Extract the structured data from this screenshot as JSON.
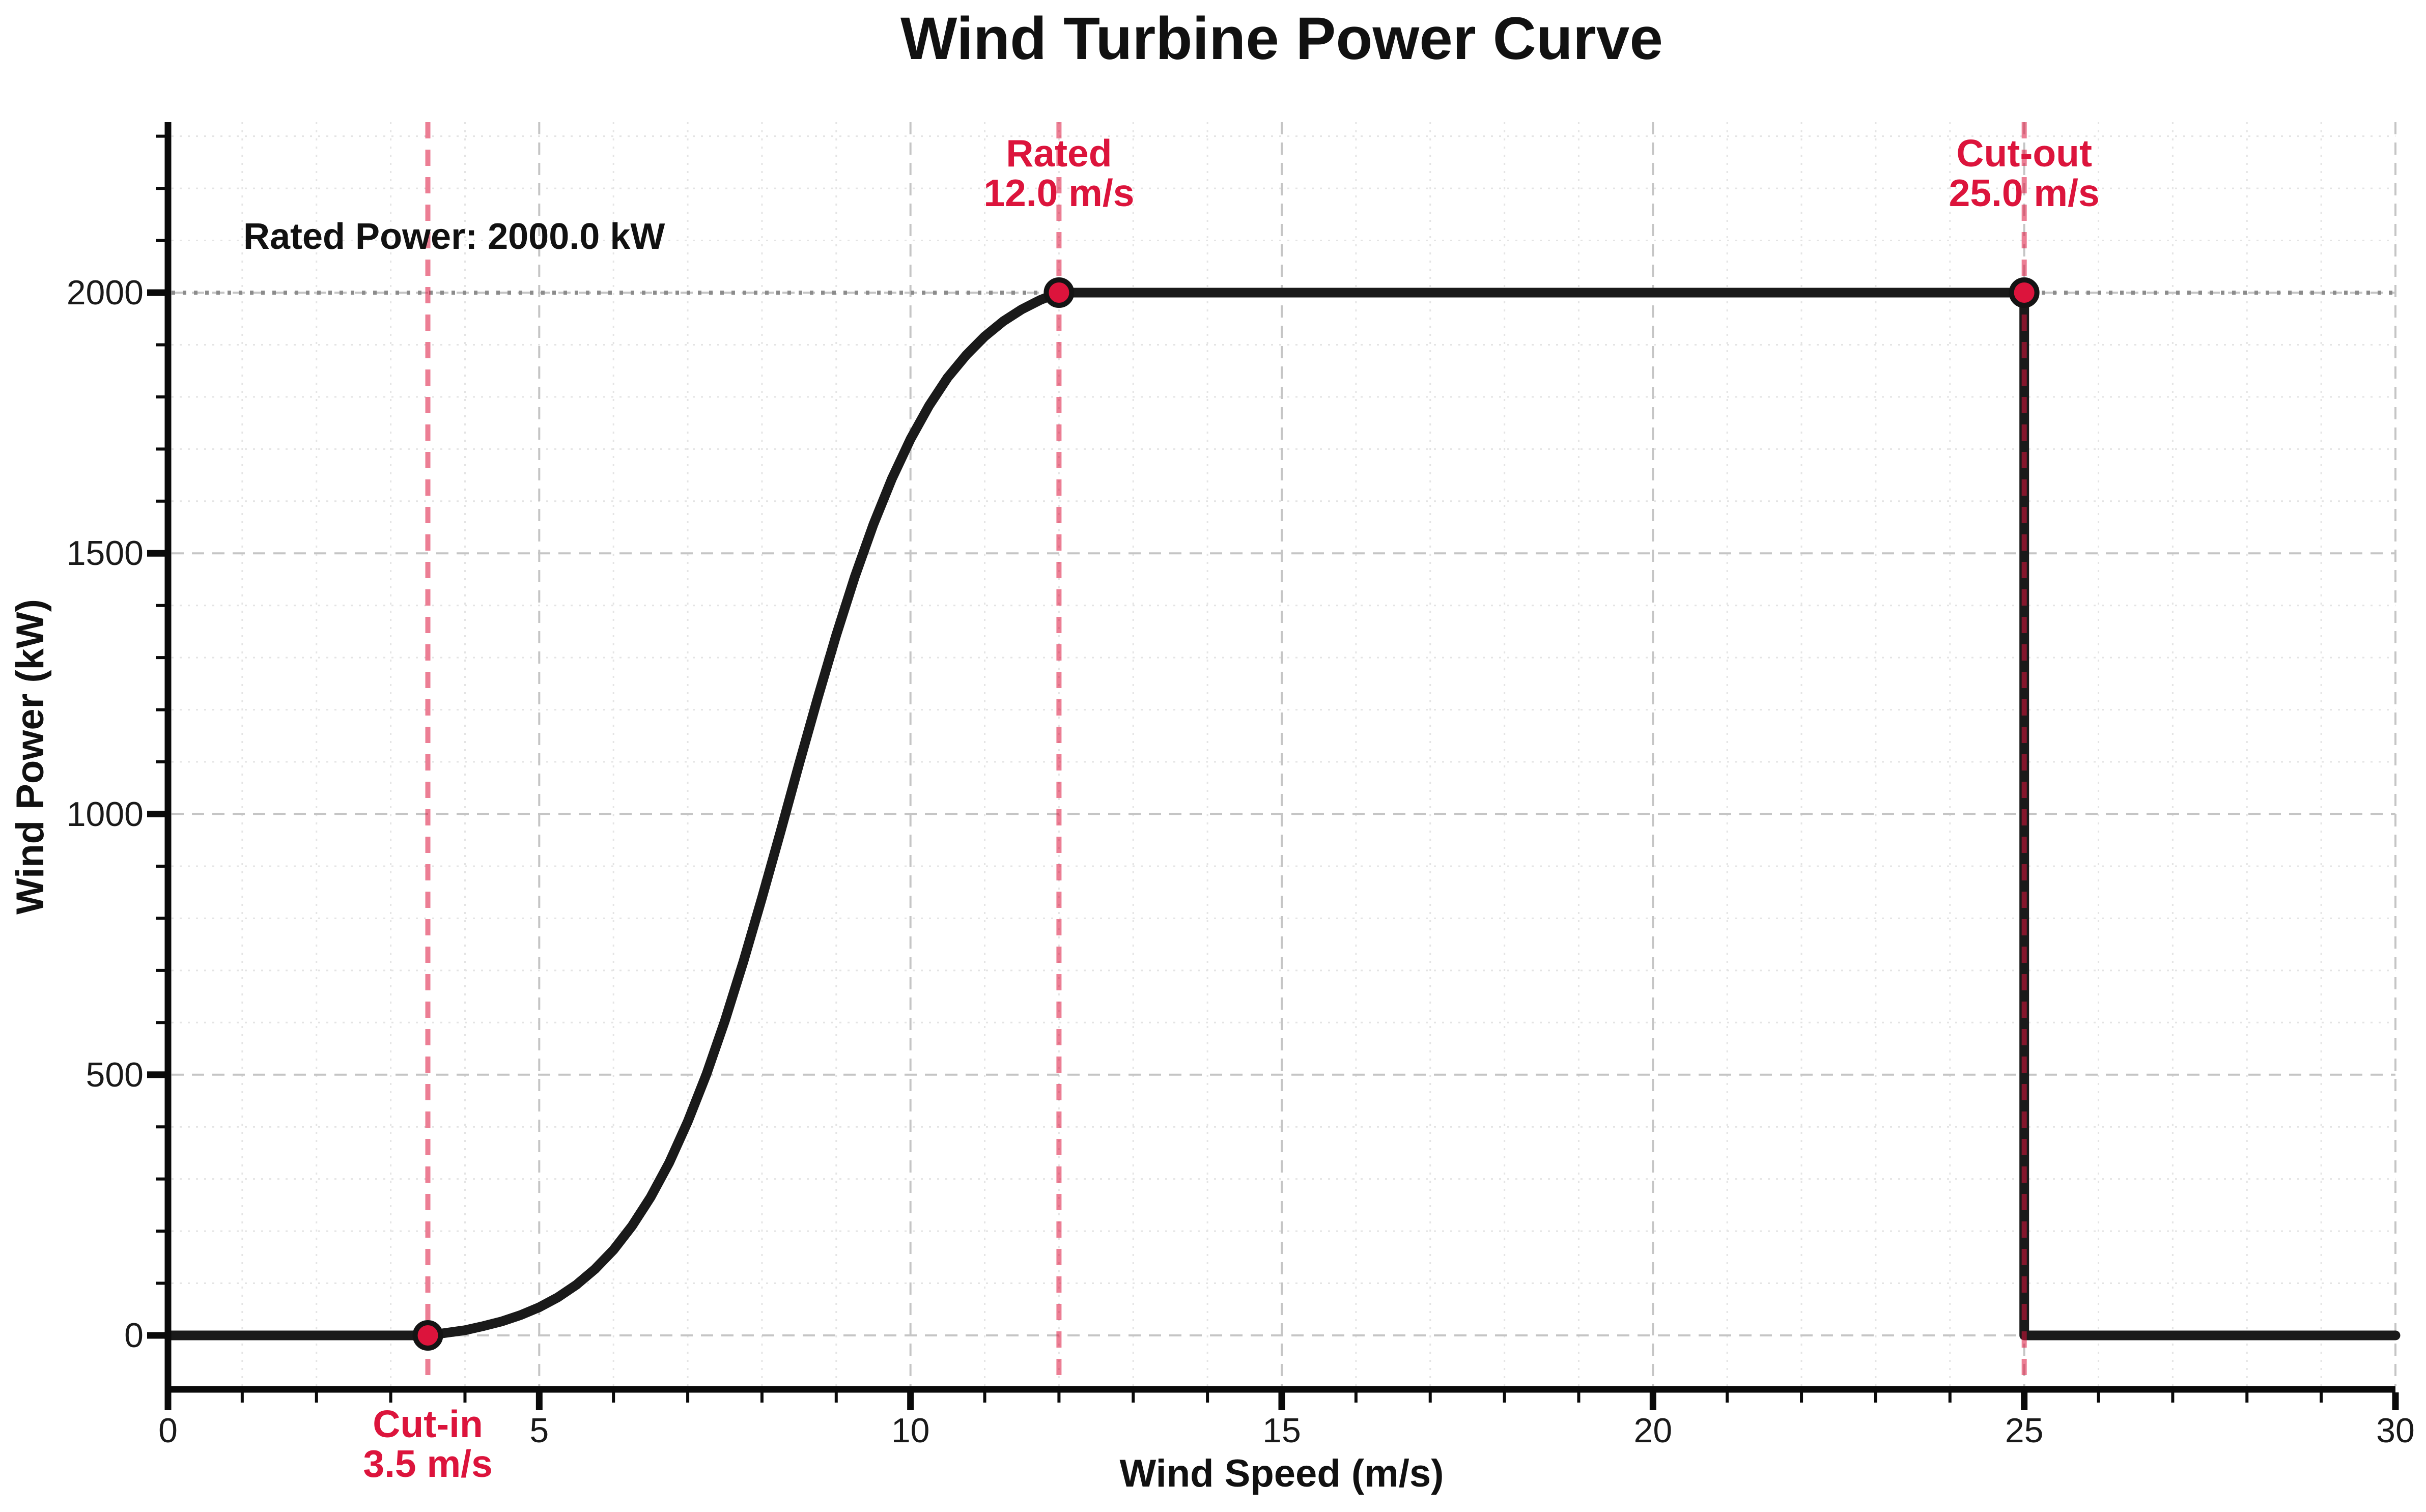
{
  "colors": {
    "accent": "#DC143C",
    "accent_line_opacity": 0.55,
    "curve": "#1a1a1a",
    "axis": "#0a0a0a",
    "grid_major": "#c5c5c5",
    "grid_minor": "#e4e4e4",
    "ref_line": "#8c8c8c",
    "text": "#111111"
  },
  "chart_data": {
    "type": "line",
    "title": "Wind Turbine Power Curve",
    "xlabel": "Wind Speed (m/s)",
    "ylabel": "Wind Power (kW)",
    "xlim": [
      0,
      30
    ],
    "ylim": [
      -101,
      2327
    ],
    "x_ticks": [
      0,
      5,
      10,
      15,
      20,
      25,
      30
    ],
    "y_ticks": [
      0,
      500,
      1000,
      1500,
      2000
    ],
    "minor_x_step": 1,
    "minor_y_step": 100,
    "grid": true,
    "legend_position": "none",
    "rated_power_kw": 2000.0,
    "cut_in_ms": 3.5,
    "rated_ms": 12.0,
    "cut_out_ms": 25.0,
    "rated_power_text": "Rated Power: 2000.0 kW",
    "ref_hline_y": 2000,
    "event_lines": [
      {
        "name": "cut_in",
        "x": 3.5,
        "label_line1": "Cut-in",
        "label_line2": "3.5 m/s",
        "label_position": "bottom"
      },
      {
        "name": "rated",
        "x": 12.0,
        "label_line1": "Rated",
        "label_line2": "12.0 m/s",
        "label_position": "top"
      },
      {
        "name": "cut_out",
        "x": 25.0,
        "label_line1": "Cut-out",
        "label_line2": "25.0 m/s",
        "label_position": "top"
      }
    ],
    "markers": [
      [
        3.5,
        0
      ],
      [
        12,
        2000
      ],
      [
        25,
        2000
      ]
    ],
    "series": [
      {
        "name": "Power curve",
        "points": [
          [
            0,
            0
          ],
          [
            3.5,
            0
          ],
          [
            3.75,
            5
          ],
          [
            4,
            10
          ],
          [
            4.25,
            18
          ],
          [
            4.5,
            27
          ],
          [
            4.75,
            39
          ],
          [
            5,
            54
          ],
          [
            5.25,
            73
          ],
          [
            5.5,
            97
          ],
          [
            5.75,
            127
          ],
          [
            6,
            164
          ],
          [
            6.25,
            210
          ],
          [
            6.5,
            265
          ],
          [
            6.75,
            331
          ],
          [
            7,
            410
          ],
          [
            7.25,
            500
          ],
          [
            7.5,
            603
          ],
          [
            7.75,
            717
          ],
          [
            8,
            839
          ],
          [
            8.25,
            966
          ],
          [
            8.5,
            1096
          ],
          [
            8.75,
            1222
          ],
          [
            9,
            1343
          ],
          [
            9.25,
            1455
          ],
          [
            9.5,
            1555
          ],
          [
            9.75,
            1643
          ],
          [
            10,
            1719
          ],
          [
            10.25,
            1783
          ],
          [
            10.5,
            1837
          ],
          [
            10.75,
            1880
          ],
          [
            11,
            1916
          ],
          [
            11.25,
            1945
          ],
          [
            11.5,
            1968
          ],
          [
            11.75,
            1986
          ],
          [
            12,
            2000
          ],
          [
            25,
            2000
          ],
          [
            25,
            0
          ],
          [
            30,
            0
          ]
        ]
      }
    ]
  }
}
